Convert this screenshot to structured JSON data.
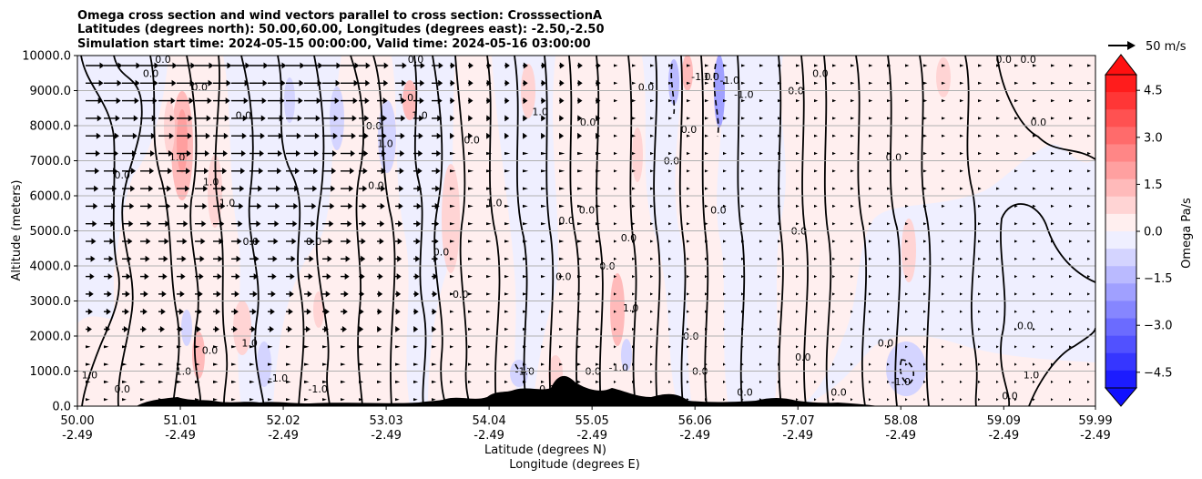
{
  "chart_data": {
    "type": "contour",
    "title_lines": [
      "Omega cross section and wind vectors parallel to cross section: CrosssectionA",
      "Latitudes (degrees north): 50.00,60.00, Longitudes (degrees east): -2.50,-2.50",
      "Simulation start time: 2024-05-15 00:00:00, Valid time: 2024-05-16 03:00:00"
    ],
    "ylabel": "Altitude (meters)",
    "xlabel_lat": "Latitude (degrees N)",
    "xlabel_lon": "Longitude (degrees E)",
    "xlim": [
      50.0,
      59.99
    ],
    "ylim": [
      0,
      10000
    ],
    "x_ticks": [
      {
        "lat": "50.00",
        "lon": "-2.49",
        "value": 50.0
      },
      {
        "lat": "51.01",
        "lon": "-2.49",
        "value": 51.01
      },
      {
        "lat": "52.02",
        "lon": "-2.49",
        "value": 52.02
      },
      {
        "lat": "53.03",
        "lon": "-2.49",
        "value": 53.03
      },
      {
        "lat": "54.04",
        "lon": "-2.49",
        "value": 54.04
      },
      {
        "lat": "55.05",
        "lon": "-2.49",
        "value": 55.05
      },
      {
        "lat": "56.06",
        "lon": "-2.49",
        "value": 56.06
      },
      {
        "lat": "57.07",
        "lon": "-2.49",
        "value": 57.07
      },
      {
        "lat": "58.08",
        "lon": "-2.49",
        "value": 58.08
      },
      {
        "lat": "59.09",
        "lon": "-2.49",
        "value": 59.09
      },
      {
        "lat": "59.99",
        "lon": "-2.49",
        "value": 59.99
      }
    ],
    "y_ticks": [
      {
        "label": "0.0",
        "value": 0
      },
      {
        "label": "1000.0",
        "value": 1000
      },
      {
        "label": "2000.0",
        "value": 2000
      },
      {
        "label": "3000.0",
        "value": 3000
      },
      {
        "label": "4000.0",
        "value": 4000
      },
      {
        "label": "5000.0",
        "value": 5000
      },
      {
        "label": "6000.0",
        "value": 6000
      },
      {
        "label": "7000.0",
        "value": 7000
      },
      {
        "label": "8000.0",
        "value": 8000
      },
      {
        "label": "9000.0",
        "value": 9000
      },
      {
        "label": "10000.0",
        "value": 10000
      }
    ],
    "grid": true,
    "colorbar": {
      "label": "Omega Pa/s",
      "range": [
        -5.0,
        5.0
      ],
      "ticks": [
        {
          "label": "4.5",
          "value": 4.5
        },
        {
          "label": "3.0",
          "value": 3.0
        },
        {
          "label": "1.5",
          "value": 1.5
        },
        {
          "label": "0.0",
          "value": 0.0
        },
        {
          "label": "−1.5",
          "value": -1.5
        },
        {
          "label": "−3.0",
          "value": -3.0
        },
        {
          "label": "−4.5",
          "value": -4.5
        }
      ],
      "colors_top_to_bottom": [
        "#ff1c1c",
        "#ff3636",
        "#ff5151",
        "#ff6b6b",
        "#ff8686",
        "#ffa0a0",
        "#ffbaba",
        "#ffd4d4",
        "#ffefef",
        "#efefff",
        "#d4d4ff",
        "#babaff",
        "#a0a0ff",
        "#8686ff",
        "#6b6bff",
        "#5151ff",
        "#3636ff",
        "#1c1cff"
      ],
      "over_color": "#ff1010",
      "under_color": "#1010ff"
    },
    "quiver_key": {
      "label": "50 m/s",
      "speed": 50
    },
    "contour_levels": [
      -1.0,
      0.0,
      1.0
    ],
    "contour_labels": [
      {
        "text": "0.0",
        "lat": 50.72,
        "alt": 9500
      },
      {
        "text": "0.0",
        "lat": 50.84,
        "alt": 9900
      },
      {
        "text": "0.0",
        "lat": 51.2,
        "alt": 9100
      },
      {
        "text": "0.0",
        "lat": 50.44,
        "alt": 6600
      },
      {
        "text": "1.0",
        "lat": 50.98,
        "alt": 7100
      },
      {
        "text": "1.0",
        "lat": 51.31,
        "alt": 6400
      },
      {
        "text": "1.0",
        "lat": 51.47,
        "alt": 5800
      },
      {
        "text": "0.0",
        "lat": 51.63,
        "alt": 8300
      },
      {
        "text": "0.0",
        "lat": 51.7,
        "alt": 4700
      },
      {
        "text": "0.0",
        "lat": 52.32,
        "alt": 4700
      },
      {
        "text": "0.0",
        "lat": 52.93,
        "alt": 6300
      },
      {
        "text": "0.0",
        "lat": 52.91,
        "alt": 8000
      },
      {
        "text": "1.0",
        "lat": 53.02,
        "alt": 7500
      },
      {
        "text": "1.0",
        "lat": 53.22,
        "alt": 8800
      },
      {
        "text": "1.0",
        "lat": 53.36,
        "alt": 8300
      },
      {
        "text": "0.0",
        "lat": 53.32,
        "alt": 9900
      },
      {
        "text": "0.0",
        "lat": 53.87,
        "alt": 7600
      },
      {
        "text": "1.0",
        "lat": 54.09,
        "alt": 5800
      },
      {
        "text": "0.0",
        "lat": 53.57,
        "alt": 4400
      },
      {
        "text": "0.0",
        "lat": 53.76,
        "alt": 3200
      },
      {
        "text": "1.0",
        "lat": 54.54,
        "alt": 8400
      },
      {
        "text": "0.0",
        "lat": 54.8,
        "alt": 5300
      },
      {
        "text": "0.0",
        "lat": 55.01,
        "alt": 8100
      },
      {
        "text": "0.0",
        "lat": 55.0,
        "alt": 5600
      },
      {
        "text": "0.0",
        "lat": 55.41,
        "alt": 4800
      },
      {
        "text": "0.0",
        "lat": 55.2,
        "alt": 4000
      },
      {
        "text": "0.0",
        "lat": 54.77,
        "alt": 3700
      },
      {
        "text": "1.0",
        "lat": 55.43,
        "alt": 2800
      },
      {
        "text": "0.0",
        "lat": 55.58,
        "alt": 9100
      },
      {
        "text": "0.0",
        "lat": 55.83,
        "alt": 7000
      },
      {
        "text": "0.0",
        "lat": 56.0,
        "alt": 7900
      },
      {
        "text": "0.0",
        "lat": 56.29,
        "alt": 5600
      },
      {
        "text": "0.0",
        "lat": 56.02,
        "alt": 2000
      },
      {
        "text": "0.0",
        "lat": 56.11,
        "alt": 1000
      },
      {
        "text": "-1.0",
        "lat": 56.12,
        "alt": 9400
      },
      {
        "text": "1.0",
        "lat": 56.22,
        "alt": 9400
      },
      {
        "text": "-1.0",
        "lat": 56.54,
        "alt": 8900
      },
      {
        "text": "-1.0",
        "lat": 56.4,
        "alt": 9300
      },
      {
        "text": "0.0",
        "lat": 57.05,
        "alt": 9000
      },
      {
        "text": "0.0",
        "lat": 57.29,
        "alt": 9500
      },
      {
        "text": "0.0",
        "lat": 57.08,
        "alt": 5000
      },
      {
        "text": "0.0",
        "lat": 57.12,
        "alt": 1400
      },
      {
        "text": "0.0",
        "lat": 57.47,
        "alt": 400
      },
      {
        "text": "0.0",
        "lat": 58.01,
        "alt": 7100
      },
      {
        "text": "0.0",
        "lat": 57.93,
        "alt": 1800
      },
      {
        "text": "-1.0",
        "lat": 58.08,
        "alt": 700
      },
      {
        "text": "0.0",
        "lat": 59.09,
        "alt": 9900
      },
      {
        "text": "0.0",
        "lat": 59.33,
        "alt": 9900
      },
      {
        "text": "0.0",
        "lat": 59.43,
        "alt": 8100
      },
      {
        "text": "0.0",
        "lat": 59.3,
        "alt": 2300
      },
      {
        "text": "1.0",
        "lat": 59.36,
        "alt": 900
      },
      {
        "text": "0.0",
        "lat": 59.15,
        "alt": 300
      },
      {
        "text": "1.0",
        "lat": 51.04,
        "alt": 1000
      },
      {
        "text": "0.0",
        "lat": 51.3,
        "alt": 1600
      },
      {
        "text": "1.0",
        "lat": 51.69,
        "alt": 1800
      },
      {
        "text": "-1.0",
        "lat": 51.97,
        "alt": 800
      },
      {
        "text": "-1.0",
        "lat": 52.36,
        "alt": 500
      },
      {
        "text": "-1.0",
        "lat": 54.39,
        "alt": 1000
      },
      {
        "text": "0.0",
        "lat": 54.61,
        "alt": 500
      },
      {
        "text": "0.0",
        "lat": 55.06,
        "alt": 1000
      },
      {
        "text": "-1.0",
        "lat": 55.31,
        "alt": 1100
      },
      {
        "text": "0.0",
        "lat": 56.55,
        "alt": 400
      },
      {
        "text": "1.0",
        "lat": 50.12,
        "alt": 900
      },
      {
        "text": "0.0",
        "lat": 50.44,
        "alt": 500
      }
    ]
  }
}
